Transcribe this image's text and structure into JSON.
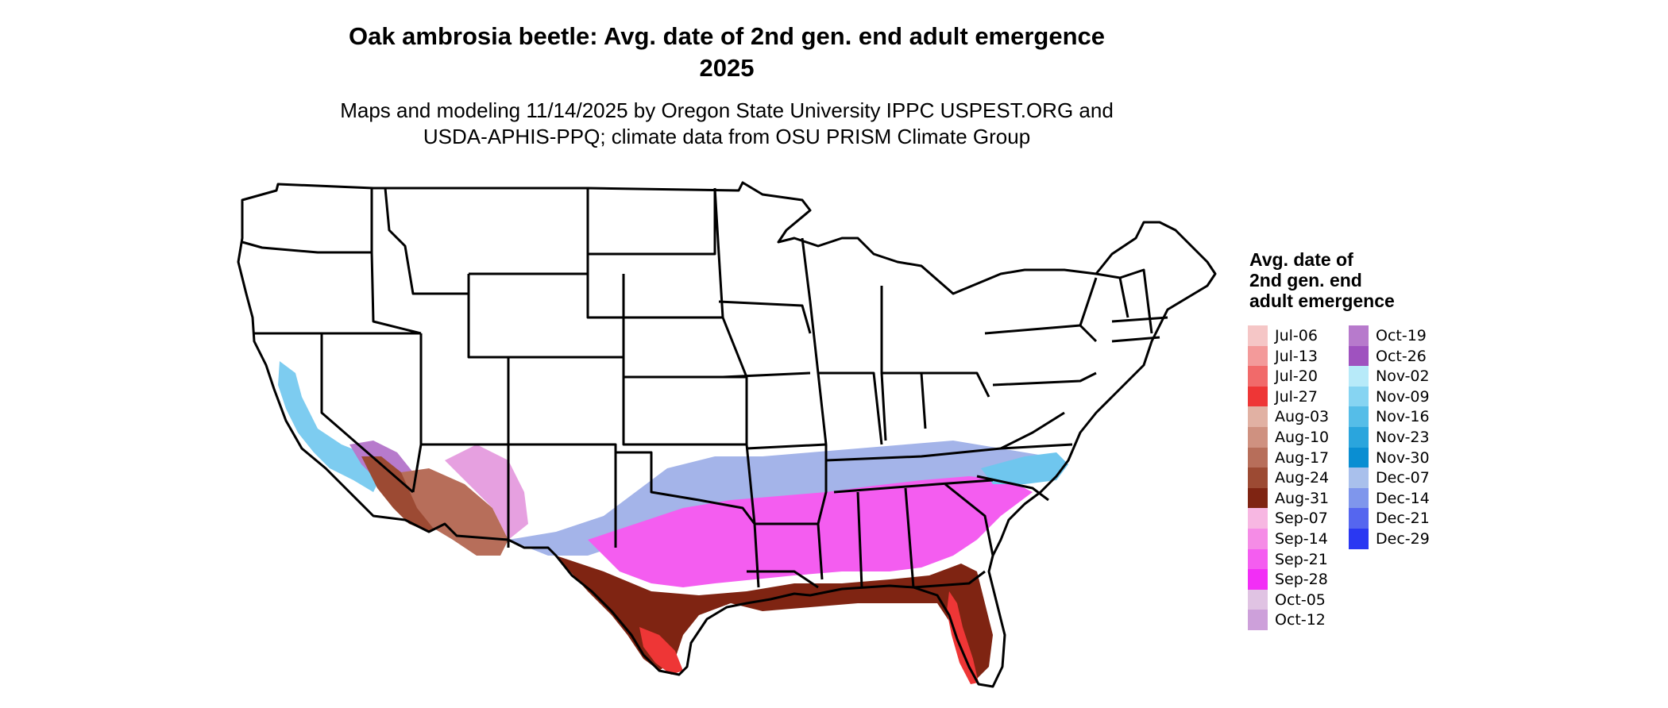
{
  "map": {
    "title_line1": "Oak ambrosia beetle: Avg. date of 2nd gen. end adult emergence",
    "title_line2": "2025",
    "subtitle_line1": "Maps and modeling 11/14/2025 by Oregon State University IPPC USPEST.ORG and",
    "subtitle_line2": "USDA-APHIS-PPQ; climate data from OSU PRISM Climate Group",
    "region": "contiguous-united-states",
    "boundaries": "state-outlines"
  },
  "legend": {
    "title_line1": "Avg. date of",
    "title_line2": "2nd gen. end",
    "title_line3": "adult emergence",
    "column1": [
      {
        "label": "Jul-06",
        "color": "#f5c6c6"
      },
      {
        "label": "Jul-13",
        "color": "#f39a9a"
      },
      {
        "label": "Jul-20",
        "color": "#f16a6a"
      },
      {
        "label": "Jul-27",
        "color": "#ee3636"
      },
      {
        "label": "Aug-03",
        "color": "#e1b1a3"
      },
      {
        "label": "Aug-10",
        "color": "#cf9180"
      },
      {
        "label": "Aug-17",
        "color": "#b76e5a"
      },
      {
        "label": "Aug-24",
        "color": "#9c4a33"
      },
      {
        "label": "Aug-31",
        "color": "#7f2412"
      },
      {
        "label": "Sep-07",
        "color": "#f7b7e2"
      },
      {
        "label": "Sep-14",
        "color": "#f58ce6"
      },
      {
        "label": "Sep-21",
        "color": "#f45df0"
      },
      {
        "label": "Sep-28",
        "color": "#f22ef6"
      },
      {
        "label": "Oct-05",
        "color": "#e0c3e3"
      },
      {
        "label": "Oct-12",
        "color": "#cda0da"
      }
    ],
    "column2": [
      {
        "label": "Oct-19",
        "color": "#b77acc"
      },
      {
        "label": "Oct-26",
        "color": "#9f52bf"
      },
      {
        "label": "Nov-02",
        "color": "#b7eaf9"
      },
      {
        "label": "Nov-09",
        "color": "#86d4f2"
      },
      {
        "label": "Nov-16",
        "color": "#55bde8"
      },
      {
        "label": "Nov-23",
        "color": "#2aa5dd"
      },
      {
        "label": "Nov-30",
        "color": "#0a8ed2"
      },
      {
        "label": "Dec-07",
        "color": "#a9c0ec"
      },
      {
        "label": "Dec-14",
        "color": "#7f96ec"
      },
      {
        "label": "Dec-21",
        "color": "#5566ef"
      },
      {
        "label": "Dec-29",
        "color": "#2a38f2"
      }
    ]
  }
}
